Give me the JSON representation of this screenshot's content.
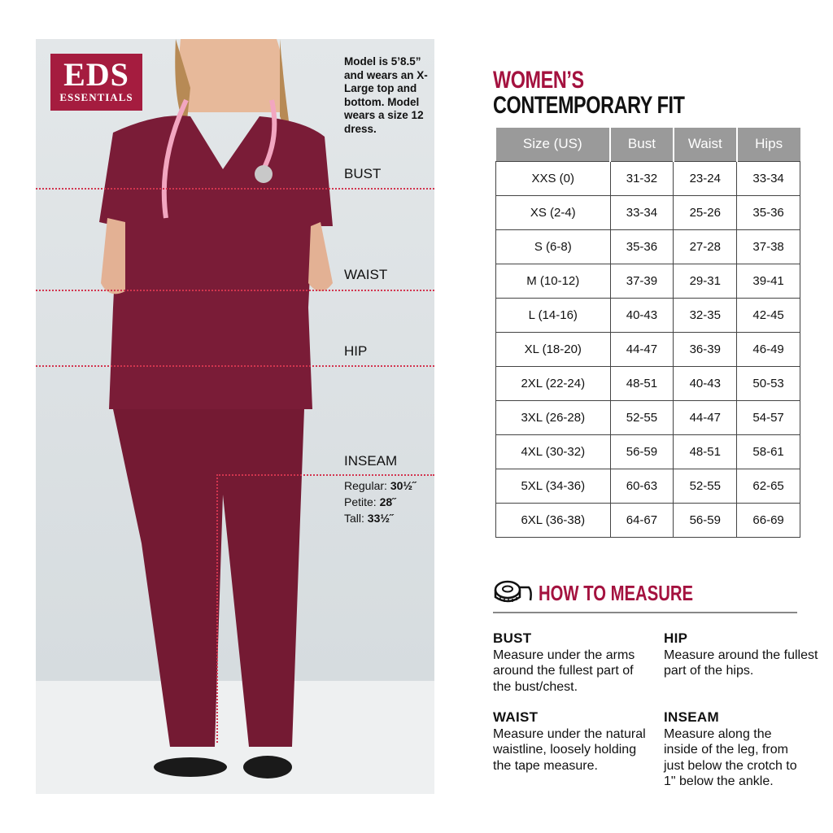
{
  "logo": {
    "brand": "EDS",
    "sub": "ESSENTIALS"
  },
  "model_note": "Model is 5’8.5” and wears an X-Large top and bottom. Model wears a size 12 dress.",
  "photo_labels": {
    "bust": "BUST",
    "waist": "WAIST",
    "hip": "HIP",
    "inseam": "INSEAM"
  },
  "inseam": [
    {
      "label": "Regular: ",
      "value": "30½˝"
    },
    {
      "label": "Petite: ",
      "value": "28˝"
    },
    {
      "label": "Tall: ",
      "value": "33½˝"
    }
  ],
  "title": {
    "line1": "WOMEN’S",
    "line2": "CONTEMPORARY FIT"
  },
  "colors": {
    "accent": "#a4123f",
    "scrub": "#7a1c37",
    "header": "#9a9a9a"
  },
  "table": {
    "headers": [
      "Size (US)",
      "Bust",
      "Waist",
      "Hips"
    ],
    "rows": [
      [
        "XXS (0)",
        "31-32",
        "23-24",
        "33-34"
      ],
      [
        "XS (2-4)",
        "33-34",
        "25-26",
        "35-36"
      ],
      [
        "S (6-8)",
        "35-36",
        "27-28",
        "37-38"
      ],
      [
        "M (10-12)",
        "37-39",
        "29-31",
        "39-41"
      ],
      [
        "L (14-16)",
        "40-43",
        "32-35",
        "42-45"
      ],
      [
        "XL (18-20)",
        "44-47",
        "36-39",
        "46-49"
      ],
      [
        "2XL (22-24)",
        "48-51",
        "40-43",
        "50-53"
      ],
      [
        "3XL (26-28)",
        "52-55",
        "44-47",
        "54-57"
      ],
      [
        "4XL (30-32)",
        "56-59",
        "48-51",
        "58-61"
      ],
      [
        "5XL (34-36)",
        "60-63",
        "52-55",
        "62-65"
      ],
      [
        "6XL (36-38)",
        "64-67",
        "56-59",
        "66-69"
      ]
    ]
  },
  "how_to": {
    "title": "HOW TO MEASURE",
    "icon": "tape-measure-icon",
    "items": [
      {
        "h": "BUST",
        "t": "Measure under the arms around the fullest part of the bust/chest."
      },
      {
        "h": "HIP",
        "t": "Measure around the fullest part of the hips."
      },
      {
        "h": "WAIST",
        "t": "Measure under the natural waistline, loosely holding the tape measure."
      },
      {
        "h": "INSEAM",
        "t": "Measure along the inside of the leg, from just below the crotch to 1\" below the ankle."
      }
    ]
  }
}
